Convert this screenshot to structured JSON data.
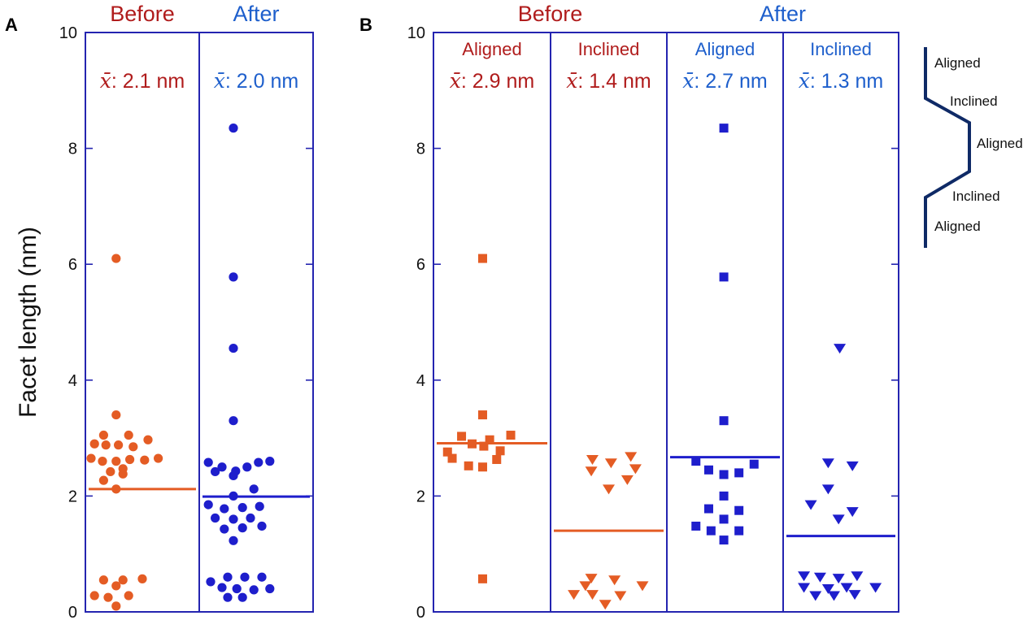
{
  "colors": {
    "before": "#e45c24",
    "after": "#1e1ecc",
    "header_before": "#b01c1c",
    "header_after": "#1e5fcc",
    "frame": "#2424b0",
    "schematic": "#0f2a66"
  },
  "chart_data": [
    {
      "panel": "A",
      "type": "scatter",
      "ylabel": "Facet length (nm)",
      "ylim": [
        0,
        10
      ],
      "yticks": [
        "0",
        "2",
        "4",
        "6",
        "8",
        "10"
      ],
      "columns": [
        {
          "header": "Before",
          "mean_label": ": 2.1 nm",
          "mean": 2.12,
          "color": "before",
          "marker": "circle",
          "points": [
            {
              "x": 0.27,
              "y": 6.1
            },
            {
              "x": 0.27,
              "y": 3.4
            },
            {
              "x": 0.16,
              "y": 3.05
            },
            {
              "x": 0.38,
              "y": 3.05
            },
            {
              "x": 0.55,
              "y": 2.97
            },
            {
              "x": 0.08,
              "y": 2.9
            },
            {
              "x": 0.18,
              "y": 2.88
            },
            {
              "x": 0.29,
              "y": 2.88
            },
            {
              "x": 0.42,
              "y": 2.85
            },
            {
              "x": 0.05,
              "y": 2.65
            },
            {
              "x": 0.15,
              "y": 2.6
            },
            {
              "x": 0.27,
              "y": 2.6
            },
            {
              "x": 0.39,
              "y": 2.63
            },
            {
              "x": 0.52,
              "y": 2.62
            },
            {
              "x": 0.64,
              "y": 2.65
            },
            {
              "x": 0.33,
              "y": 2.47
            },
            {
              "x": 0.22,
              "y": 2.42
            },
            {
              "x": 0.33,
              "y": 2.38
            },
            {
              "x": 0.16,
              "y": 2.27
            },
            {
              "x": 0.27,
              "y": 2.12
            },
            {
              "x": 0.16,
              "y": 0.55
            },
            {
              "x": 0.33,
              "y": 0.55
            },
            {
              "x": 0.5,
              "y": 0.57
            },
            {
              "x": 0.27,
              "y": 0.45
            },
            {
              "x": 0.08,
              "y": 0.28
            },
            {
              "x": 0.2,
              "y": 0.25
            },
            {
              "x": 0.38,
              "y": 0.28
            },
            {
              "x": 0.27,
              "y": 0.1
            }
          ]
        },
        {
          "header": "After",
          "mean_label": ": 2.0 nm",
          "mean": 1.99,
          "color": "after",
          "marker": "circle",
          "points": [
            {
              "x": 0.3,
              "y": 8.35
            },
            {
              "x": 0.3,
              "y": 5.78
            },
            {
              "x": 0.3,
              "y": 4.55
            },
            {
              "x": 0.3,
              "y": 3.3
            },
            {
              "x": 0.08,
              "y": 2.58
            },
            {
              "x": 0.2,
              "y": 2.5
            },
            {
              "x": 0.32,
              "y": 2.43
            },
            {
              "x": 0.42,
              "y": 2.5
            },
            {
              "x": 0.52,
              "y": 2.58
            },
            {
              "x": 0.62,
              "y": 2.6
            },
            {
              "x": 0.14,
              "y": 2.42
            },
            {
              "x": 0.3,
              "y": 2.35
            },
            {
              "x": 0.3,
              "y": 2.0
            },
            {
              "x": 0.48,
              "y": 2.12
            },
            {
              "x": 0.08,
              "y": 1.85
            },
            {
              "x": 0.22,
              "y": 1.78
            },
            {
              "x": 0.38,
              "y": 1.8
            },
            {
              "x": 0.53,
              "y": 1.82
            },
            {
              "x": 0.14,
              "y": 1.62
            },
            {
              "x": 0.3,
              "y": 1.6
            },
            {
              "x": 0.45,
              "y": 1.62
            },
            {
              "x": 0.22,
              "y": 1.43
            },
            {
              "x": 0.38,
              "y": 1.45
            },
            {
              "x": 0.55,
              "y": 1.48
            },
            {
              "x": 0.3,
              "y": 1.23
            },
            {
              "x": 0.1,
              "y": 0.52
            },
            {
              "x": 0.25,
              "y": 0.6
            },
            {
              "x": 0.4,
              "y": 0.6
            },
            {
              "x": 0.55,
              "y": 0.6
            },
            {
              "x": 0.2,
              "y": 0.42
            },
            {
              "x": 0.33,
              "y": 0.4
            },
            {
              "x": 0.48,
              "y": 0.38
            },
            {
              "x": 0.62,
              "y": 0.4
            },
            {
              "x": 0.25,
              "y": 0.25
            },
            {
              "x": 0.38,
              "y": 0.25
            }
          ]
        }
      ]
    },
    {
      "panel": "B",
      "type": "scatter",
      "ylim": [
        0,
        10
      ],
      "yticks": [
        "0",
        "2",
        "4",
        "6",
        "8",
        "10"
      ],
      "groups": [
        {
          "label": "Before",
          "color": "header_before",
          "columns": [
            0,
            1
          ]
        },
        {
          "label": "After",
          "color": "header_after",
          "columns": [
            2,
            3
          ]
        }
      ],
      "columns": [
        {
          "header": "Aligned",
          "mean_label": ": 2.9 nm",
          "mean": 2.91,
          "color": "before",
          "marker": "square",
          "points": [
            {
              "x": 0.42,
              "y": 6.1
            },
            {
              "x": 0.42,
              "y": 3.4
            },
            {
              "x": 0.24,
              "y": 3.03
            },
            {
              "x": 0.48,
              "y": 2.97
            },
            {
              "x": 0.66,
              "y": 3.05
            },
            {
              "x": 0.12,
              "y": 2.76
            },
            {
              "x": 0.33,
              "y": 2.9
            },
            {
              "x": 0.43,
              "y": 2.86
            },
            {
              "x": 0.57,
              "y": 2.78
            },
            {
              "x": 0.16,
              "y": 2.65
            },
            {
              "x": 0.3,
              "y": 2.52
            },
            {
              "x": 0.42,
              "y": 2.5
            },
            {
              "x": 0.54,
              "y": 2.63
            },
            {
              "x": 0.42,
              "y": 0.57
            }
          ]
        },
        {
          "header": "Inclined",
          "mean_label": ": 1.4 nm",
          "mean": 1.4,
          "color": "before",
          "marker": "triangle",
          "points": [
            {
              "x": 0.36,
              "y": 2.63
            },
            {
              "x": 0.52,
              "y": 2.57
            },
            {
              "x": 0.69,
              "y": 2.68
            },
            {
              "x": 0.35,
              "y": 2.43
            },
            {
              "x": 0.73,
              "y": 2.47
            },
            {
              "x": 0.66,
              "y": 2.28
            },
            {
              "x": 0.5,
              "y": 2.12
            },
            {
              "x": 0.35,
              "y": 0.58
            },
            {
              "x": 0.55,
              "y": 0.55
            },
            {
              "x": 0.3,
              "y": 0.45
            },
            {
              "x": 0.79,
              "y": 0.45
            },
            {
              "x": 0.2,
              "y": 0.3
            },
            {
              "x": 0.36,
              "y": 0.3
            },
            {
              "x": 0.6,
              "y": 0.28
            },
            {
              "x": 0.47,
              "y": 0.13
            }
          ]
        },
        {
          "header": "Aligned",
          "mean_label": ": 2.7 nm",
          "mean": 2.67,
          "color": "after",
          "marker": "square",
          "points": [
            {
              "x": 0.49,
              "y": 8.35
            },
            {
              "x": 0.49,
              "y": 5.78
            },
            {
              "x": 0.49,
              "y": 3.3
            },
            {
              "x": 0.25,
              "y": 2.6
            },
            {
              "x": 0.75,
              "y": 2.55
            },
            {
              "x": 0.36,
              "y": 2.45
            },
            {
              "x": 0.49,
              "y": 2.37
            },
            {
              "x": 0.62,
              "y": 2.4
            },
            {
              "x": 0.49,
              "y": 2.0
            },
            {
              "x": 0.36,
              "y": 1.78
            },
            {
              "x": 0.62,
              "y": 1.75
            },
            {
              "x": 0.49,
              "y": 1.6
            },
            {
              "x": 0.25,
              "y": 1.48
            },
            {
              "x": 0.38,
              "y": 1.4
            },
            {
              "x": 0.62,
              "y": 1.4
            },
            {
              "x": 0.49,
              "y": 1.24
            }
          ]
        },
        {
          "header": "Inclined",
          "mean_label": ": 1.3 nm",
          "mean": 1.31,
          "color": "after",
          "marker": "triangle",
          "points": [
            {
              "x": 0.49,
              "y": 4.55
            },
            {
              "x": 0.39,
              "y": 2.57
            },
            {
              "x": 0.6,
              "y": 2.52
            },
            {
              "x": 0.39,
              "y": 2.12
            },
            {
              "x": 0.24,
              "y": 1.85
            },
            {
              "x": 0.48,
              "y": 1.6
            },
            {
              "x": 0.6,
              "y": 1.73
            },
            {
              "x": 0.18,
              "y": 0.62
            },
            {
              "x": 0.32,
              "y": 0.6
            },
            {
              "x": 0.48,
              "y": 0.58
            },
            {
              "x": 0.64,
              "y": 0.62
            },
            {
              "x": 0.18,
              "y": 0.42
            },
            {
              "x": 0.39,
              "y": 0.4
            },
            {
              "x": 0.55,
              "y": 0.42
            },
            {
              "x": 0.8,
              "y": 0.42
            },
            {
              "x": 0.28,
              "y": 0.28
            },
            {
              "x": 0.44,
              "y": 0.28
            },
            {
              "x": 0.62,
              "y": 0.3
            }
          ]
        }
      ]
    }
  ],
  "schematic": {
    "labels": [
      "Aligned",
      "Inclined",
      "Aligned",
      "Inclined",
      "Aligned"
    ]
  }
}
